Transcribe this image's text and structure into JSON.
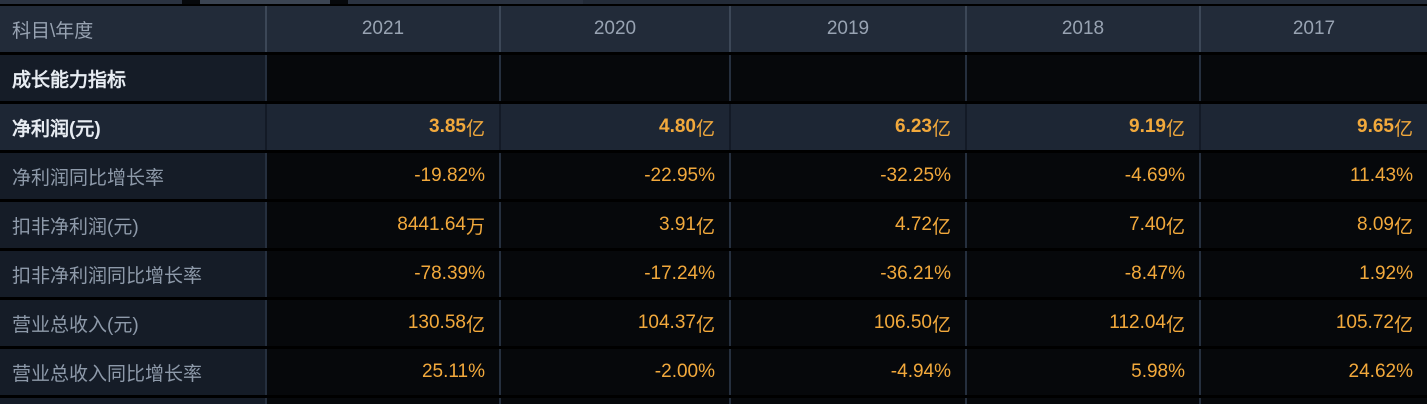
{
  "colors": {
    "orange": "#f2a93c",
    "header_bg": "#222b39",
    "label_bg": "#151c27",
    "highlight_bg": "#1d2634",
    "cell_black": "#06080b",
    "sep_header": "#3c4757",
    "sep_dark": "#252f3e",
    "sep_highlight": "#131a26",
    "header_text": "#98a3b2",
    "label_text": "#8e9aaa",
    "white_text": "#e7ecf2"
  },
  "table": {
    "header": {
      "label": "科目\\年度",
      "years": [
        "2021",
        "2020",
        "2019",
        "2018",
        "2017"
      ]
    },
    "rows": [
      {
        "label": "成长能力指标",
        "type": "section",
        "values": [
          {
            "v": "",
            "u": ""
          },
          {
            "v": "",
            "u": ""
          },
          {
            "v": "",
            "u": ""
          },
          {
            "v": "",
            "u": ""
          },
          {
            "v": "",
            "u": ""
          }
        ]
      },
      {
        "label": "净利润(元)",
        "type": "highlight",
        "values": [
          {
            "v": "3.85",
            "u": "亿"
          },
          {
            "v": "4.80",
            "u": "亿"
          },
          {
            "v": "6.23",
            "u": "亿"
          },
          {
            "v": "9.19",
            "u": "亿"
          },
          {
            "v": "9.65",
            "u": "亿"
          }
        ]
      },
      {
        "label": "净利润同比增长率",
        "type": "normal",
        "values": [
          {
            "v": "-19.82%",
            "u": ""
          },
          {
            "v": "-22.95%",
            "u": ""
          },
          {
            "v": "-32.25%",
            "u": ""
          },
          {
            "v": "-4.69%",
            "u": ""
          },
          {
            "v": "11.43%",
            "u": ""
          }
        ]
      },
      {
        "label": "扣非净利润(元)",
        "type": "normal",
        "values": [
          {
            "v": "8441.64",
            "u": "万"
          },
          {
            "v": "3.91",
            "u": "亿"
          },
          {
            "v": "4.72",
            "u": "亿"
          },
          {
            "v": "7.40",
            "u": "亿"
          },
          {
            "v": "8.09",
            "u": "亿"
          }
        ]
      },
      {
        "label": "扣非净利润同比增长率",
        "type": "normal",
        "values": [
          {
            "v": "-78.39%",
            "u": ""
          },
          {
            "v": "-17.24%",
            "u": ""
          },
          {
            "v": "-36.21%",
            "u": ""
          },
          {
            "v": "-8.47%",
            "u": ""
          },
          {
            "v": "1.92%",
            "u": ""
          }
        ]
      },
      {
        "label": "营业总收入(元)",
        "type": "normal",
        "values": [
          {
            "v": "130.58",
            "u": "亿"
          },
          {
            "v": "104.37",
            "u": "亿"
          },
          {
            "v": "106.50",
            "u": "亿"
          },
          {
            "v": "112.04",
            "u": "亿"
          },
          {
            "v": "105.72",
            "u": "亿"
          }
        ]
      },
      {
        "label": "营业总收入同比增长率",
        "type": "normal",
        "values": [
          {
            "v": "25.11%",
            "u": ""
          },
          {
            "v": "-2.00%",
            "u": ""
          },
          {
            "v": "-4.94%",
            "u": ""
          },
          {
            "v": "5.98%",
            "u": ""
          },
          {
            "v": "24.62%",
            "u": ""
          }
        ]
      }
    ]
  }
}
